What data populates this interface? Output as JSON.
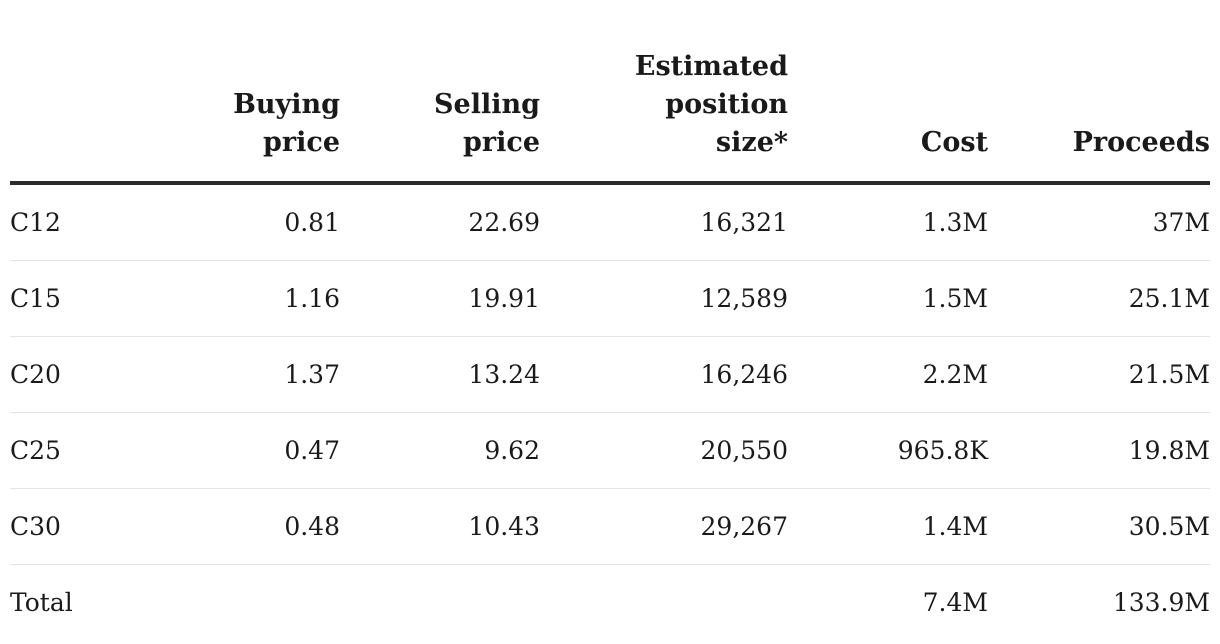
{
  "chart_data": {
    "type": "table",
    "columns": [
      "",
      "Buying\nprice",
      "Selling\nprice",
      "Estimated\nposition\nsize*",
      "Cost",
      "Proceeds"
    ],
    "rows": [
      {
        "label": "C12",
        "cells": [
          "0.81",
          "22.69",
          "16,321",
          "1.3M",
          "37M"
        ]
      },
      {
        "label": "C15",
        "cells": [
          "1.16",
          "19.91",
          "12,589",
          "1.5M",
          "25.1M"
        ]
      },
      {
        "label": "C20",
        "cells": [
          "1.37",
          "13.24",
          "16,246",
          "2.2M",
          "21.5M"
        ]
      },
      {
        "label": "C25",
        "cells": [
          "0.47",
          "9.62",
          "20,550",
          "965.8K",
          "19.8M"
        ]
      },
      {
        "label": "C30",
        "cells": [
          "0.48",
          "10.43",
          "29,267",
          "1.4M",
          "30.5M"
        ]
      },
      {
        "label": "Total",
        "cells": [
          "",
          "",
          "",
          "7.4M",
          "133.9M"
        ]
      }
    ]
  }
}
